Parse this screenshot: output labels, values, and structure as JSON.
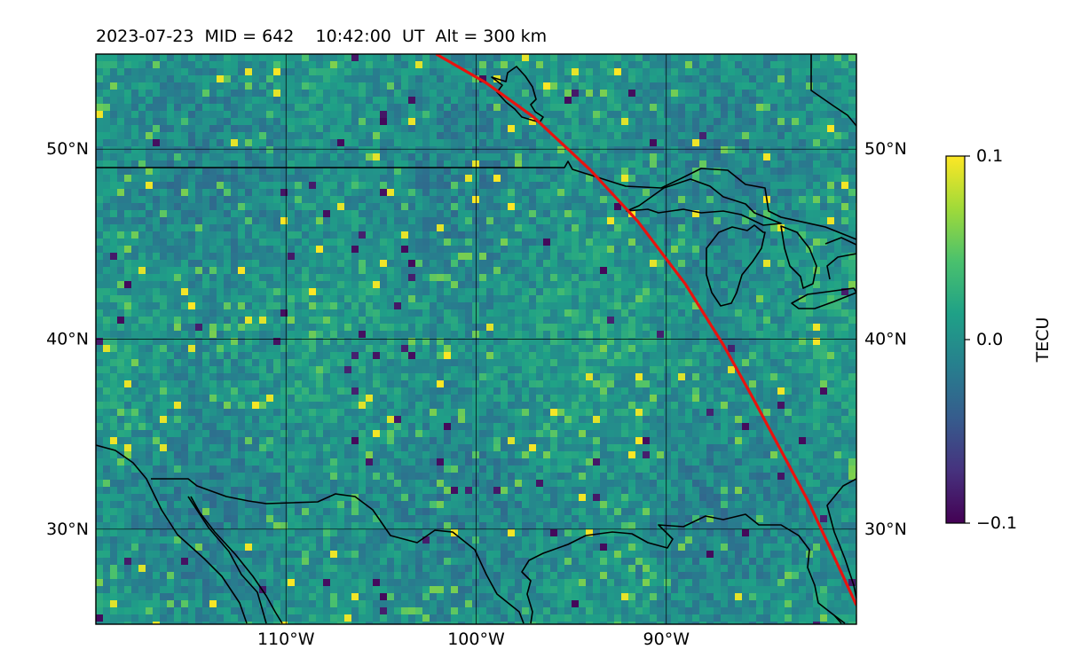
{
  "title": "2023-07-23  MID = 642    10:42:00  UT  Alt = 300 km",
  "map": {
    "extent": {
      "lon_min": -120,
      "lon_max": -80,
      "lat_min": 25,
      "lat_max": 55
    },
    "lat_ticks": [
      {
        "value": 50,
        "label": "50°N"
      },
      {
        "value": 40,
        "label": "40°N"
      },
      {
        "value": 30,
        "label": "30°N"
      }
    ],
    "lon_ticks": [
      {
        "value": -110,
        "label": "110°W"
      },
      {
        "value": -100,
        "label": "100°W"
      },
      {
        "value": -90,
        "label": "90°W"
      }
    ],
    "gridlines": true,
    "colormap": "viridis",
    "field_variable": "TECU",
    "track_color": "#e8130f",
    "track_points": [
      {
        "lon": -102.1,
        "lat": 55.0
      },
      {
        "lon": -99.5,
        "lat": 53.5
      },
      {
        "lon": -97.0,
        "lat": 51.7
      },
      {
        "lon": -94.0,
        "lat": 48.9
      },
      {
        "lon": -91.5,
        "lat": 46.2
      },
      {
        "lon": -89.0,
        "lat": 42.9
      },
      {
        "lon": -87.0,
        "lat": 39.7
      },
      {
        "lon": -85.5,
        "lat": 37.0
      },
      {
        "lon": -84.0,
        "lat": 34.2
      },
      {
        "lon": -82.5,
        "lat": 31.4
      },
      {
        "lon": -81.2,
        "lat": 28.6
      },
      {
        "lon": -80.0,
        "lat": 26.0
      }
    ]
  },
  "colorbar": {
    "label": "TECU",
    "min": -0.1,
    "max": 0.1,
    "ticks": [
      {
        "value": 0.1,
        "label": "0.1"
      },
      {
        "value": 0.0,
        "label": "0.0"
      },
      {
        "value": -0.1,
        "label": "−0.1"
      }
    ]
  },
  "colors": {
    "viridis": [
      "#440154",
      "#46327e",
      "#365c8d",
      "#277f8e",
      "#1fa187",
      "#4ac16d",
      "#a0da39",
      "#fde725"
    ],
    "coastline": "#000000",
    "grid": "#000000"
  }
}
